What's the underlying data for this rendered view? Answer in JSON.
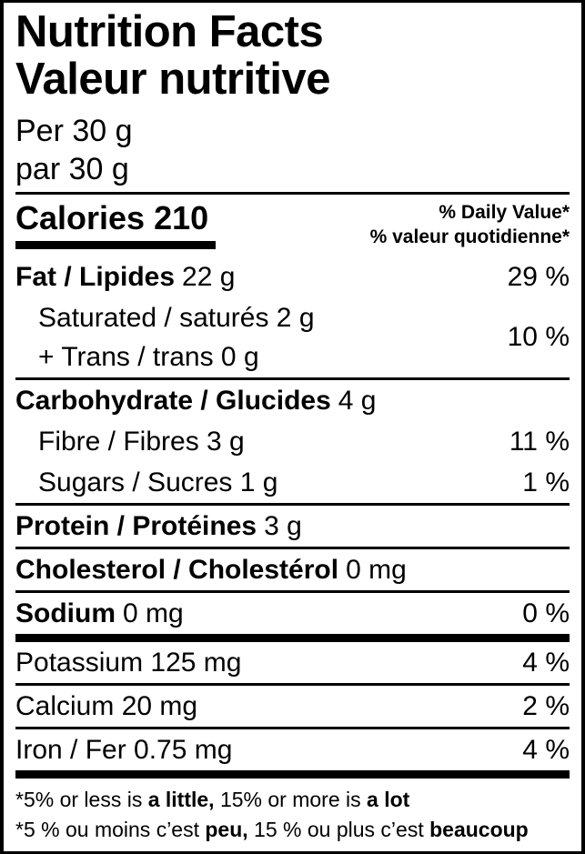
{
  "colors": {
    "text": "#000000",
    "background": "#ffffff"
  },
  "label": {
    "title_en": "Nutrition Facts",
    "title_fr": "Valeur nutritive",
    "serving_en": "Per 30 g",
    "serving_fr": "par 30 g",
    "calories": {
      "label": "Calories",
      "value": "210"
    },
    "daily_value_header_en": "% Daily Value*",
    "daily_value_header_fr": "% valeur quotidienne*",
    "rows": {
      "fat": {
        "name": "Fat / Lipides",
        "amount": "22 g",
        "dv": "29 %"
      },
      "sat_trans": {
        "line1": "Saturated / saturés 2 g",
        "line2": "+ Trans / trans 0 g",
        "dv": "10 %"
      },
      "carbohydrate": {
        "name": "Carbohydrate / Glucides",
        "amount": "4 g"
      },
      "fibre": {
        "text": "Fibre / Fibres 3 g",
        "dv": "11 %"
      },
      "sugars": {
        "text": "Sugars / Sucres 1 g",
        "dv": "1 %"
      },
      "protein": {
        "name": "Protein / Protéines",
        "amount": "3 g"
      },
      "cholesterol": {
        "name": "Cholesterol / Cholestérol",
        "amount": "0 mg"
      },
      "sodium": {
        "name": "Sodium",
        "amount": "0 mg",
        "dv": "0 %"
      },
      "potassium": {
        "text": "Potassium 125 mg",
        "dv": "4 %"
      },
      "calcium": {
        "text": "Calcium 20 mg",
        "dv": "2 %"
      },
      "iron": {
        "text": "Iron / Fer 0.75 mg",
        "dv": "4 %"
      }
    },
    "footnote": {
      "en": {
        "s1": "*5% or less is ",
        "b1": "a little,",
        "s2": " 15% or more is ",
        "b2": "a lot"
      },
      "fr": {
        "s1": "*5 % ou moins c’est ",
        "b1": "peu,",
        "s2": " 15 % ou plus c’est ",
        "b2": "beaucoup"
      }
    }
  }
}
